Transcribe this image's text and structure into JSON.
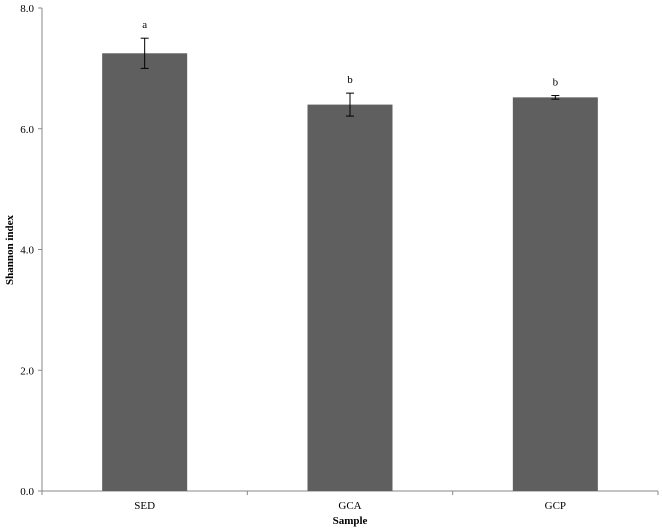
{
  "chart_data": {
    "type": "bar",
    "title": "",
    "xlabel": "Sample",
    "ylabel": "Shannon index",
    "categories": [
      "SED",
      "GCA",
      "GCP"
    ],
    "values": [
      7.25,
      6.4,
      6.52
    ],
    "errors": [
      0.25,
      0.19,
      0.03
    ],
    "significance": [
      "a",
      "b",
      "b"
    ],
    "ylim": [
      0,
      8
    ],
    "yticks": [
      0,
      2,
      4,
      6,
      8
    ],
    "ytick_labels": [
      "0.0",
      "2.0",
      "4.0",
      "6.0",
      "8.0"
    ],
    "grid": false,
    "legend": "none",
    "bar_color": "#5f5f5f",
    "axis_color": "#888888"
  }
}
